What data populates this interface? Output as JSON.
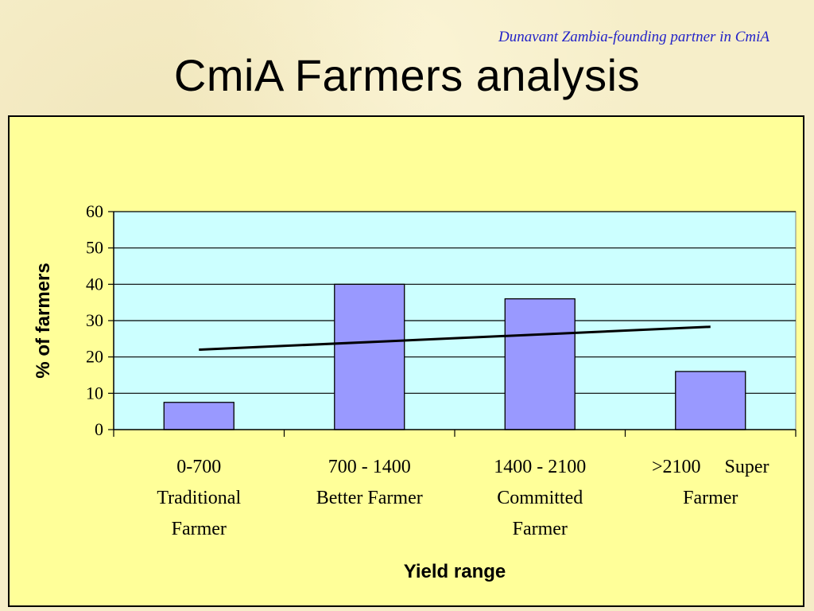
{
  "header": {
    "subtitle": "Dunavant Zambia-founding partner in CmiA",
    "title": "CmiA Farmers analysis"
  },
  "chart_data": {
    "type": "bar",
    "categories": [
      [
        "0-700",
        "Traditional",
        "Farmer"
      ],
      [
        "700 - 1400",
        "Better Farmer"
      ],
      [
        "1400 - 2100",
        "Committed",
        "Farmer"
      ],
      [
        ">2100     Super",
        "Farmer"
      ]
    ],
    "values": [
      7.5,
      40,
      36,
      16
    ],
    "trendline": {
      "start": 22,
      "end": 28.3
    },
    "xlabel": "Yield range",
    "ylabel": "% of farmers",
    "ylim": [
      0,
      60
    ],
    "yticks": [
      0,
      10,
      20,
      30,
      40,
      50,
      60
    ],
    "grid": true,
    "colors": {
      "bar": "#9999ff",
      "plot_background": "#ccffff",
      "panel_background": "#ffff99",
      "trendline": "#000000"
    }
  }
}
